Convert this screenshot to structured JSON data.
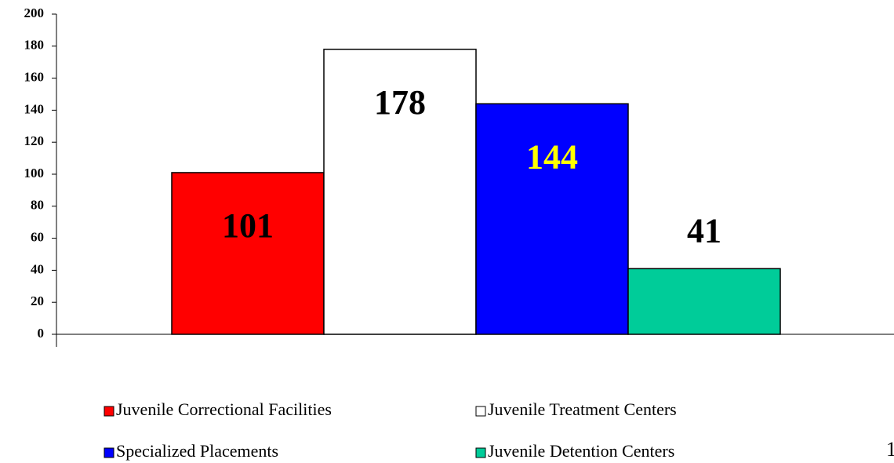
{
  "chart_data": {
    "type": "bar",
    "series": [
      {
        "name": "Juvenile Correctional Facilities",
        "color": "#ff0000",
        "label_color": "#000000",
        "values": [
          101
        ]
      },
      {
        "name": "Juvenile Treatment Centers",
        "color": "#ffffff",
        "label_color": "#000000",
        "values": [
          178
        ]
      },
      {
        "name": "Specialized Placements",
        "color": "#0000ff",
        "label_color": "#ffff00",
        "values": [
          144
        ]
      },
      {
        "name": "Juvenile Detention Centers",
        "color": "#00cc99",
        "label_color": "#000000",
        "values": [
          41
        ]
      }
    ],
    "ylim": [
      0,
      200
    ],
    "yticks": [
      0,
      20,
      40,
      60,
      80,
      100,
      120,
      140,
      160,
      180,
      200
    ],
    "grid": false
  },
  "page_number": "1"
}
